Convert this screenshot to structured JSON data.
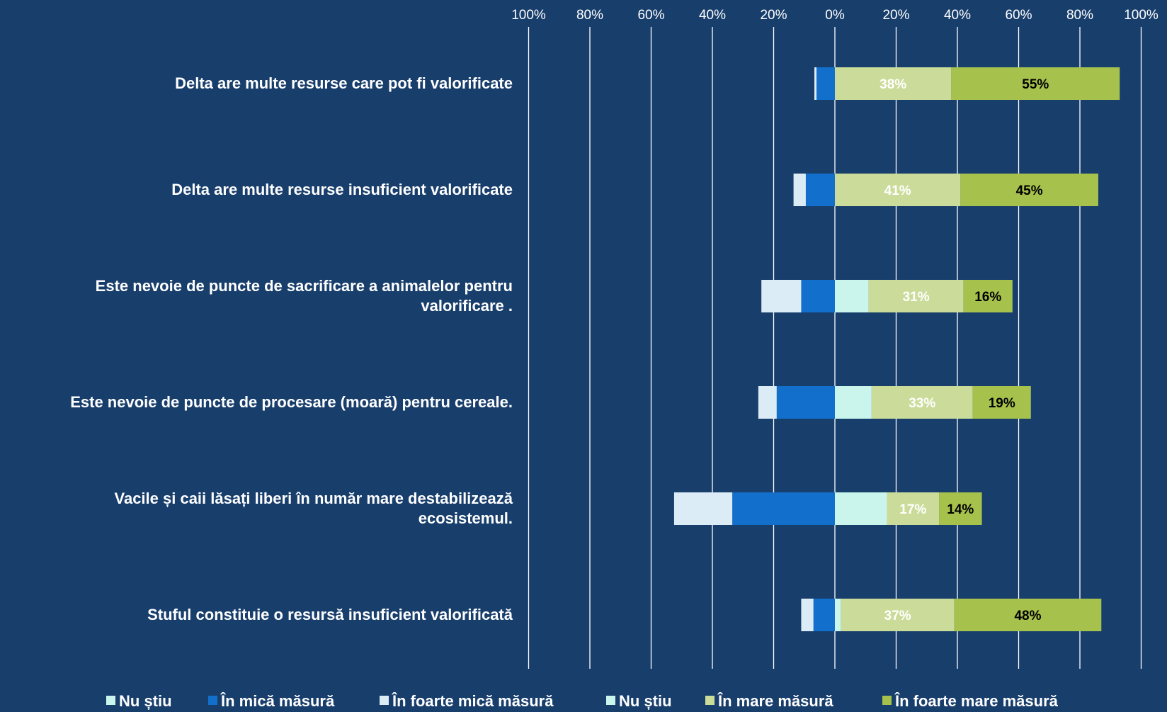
{
  "chart_data": {
    "type": "bar",
    "orientation": "horizontal",
    "stacking": "diverging",
    "title": "",
    "xlabel": "",
    "ylabel": "",
    "xlim": [
      -100,
      100
    ],
    "x_ticks": [
      -100,
      -80,
      -60,
      -40,
      -20,
      0,
      20,
      40,
      60,
      80,
      100
    ],
    "x_tick_labels": [
      "100%",
      "80%",
      "60%",
      "40%",
      "20%",
      "0%",
      "20%",
      "40%",
      "60%",
      "80%",
      "100%"
    ],
    "grid": true,
    "legend_position": "bottom",
    "categories": [
      [
        "Delta are multe resurse care pot fi valorificate"
      ],
      [
        "Delta are multe resurse insuficient valorificate"
      ],
      [
        "Este nevoie de puncte de sacrificare a animalelor pentru",
        "valorificare ."
      ],
      [
        "Este nevoie de puncte de procesare (moară) pentru cereale."
      ],
      [
        "Vacile și caii lăsați liberi în număr mare destabilizează",
        "ecosistemul."
      ],
      [
        "Stuful constituie o resursă insuficient valorificată"
      ]
    ],
    "series": [
      {
        "name": "Nu știu",
        "side": "negative",
        "color": "#c9f5ec",
        "values": [
          0,
          0,
          0,
          0,
          0,
          0
        ]
      },
      {
        "name": "În mică măsură",
        "side": "negative",
        "color": "#1270cc",
        "values": [
          6,
          9.5,
          11,
          19,
          33.5,
          7
        ]
      },
      {
        "name": "În foarte mică măsură",
        "side": "negative",
        "color": "#dcecf7",
        "values": [
          0.7,
          4,
          13,
          6,
          19,
          4
        ]
      },
      {
        "name": "Nu știu",
        "side": "positive",
        "color": "#c9f5ec",
        "values": [
          0,
          0,
          11,
          12,
          17,
          2
        ]
      },
      {
        "name": "În mare măsură",
        "side": "positive",
        "color": "#cbdc9a",
        "values": [
          38,
          41,
          31,
          33,
          17,
          37
        ]
      },
      {
        "name": "În foarte mare măsură",
        "side": "positive",
        "color": "#a6c14c",
        "values": [
          55,
          45,
          16,
          19,
          14,
          48
        ]
      }
    ],
    "data_labels": [
      {
        "series": 4,
        "labels": [
          "38%",
          "41%",
          "31%",
          "33%",
          "17%",
          "37%"
        ],
        "color": "#ffffff"
      },
      {
        "series": 5,
        "labels": [
          "55%",
          "45%",
          "16%",
          "19%",
          "14%",
          "48%"
        ],
        "color": "#000000"
      }
    ],
    "colors": {
      "background": "#183e6c",
      "grid": "#ffffff",
      "text": "#ffffff"
    }
  }
}
